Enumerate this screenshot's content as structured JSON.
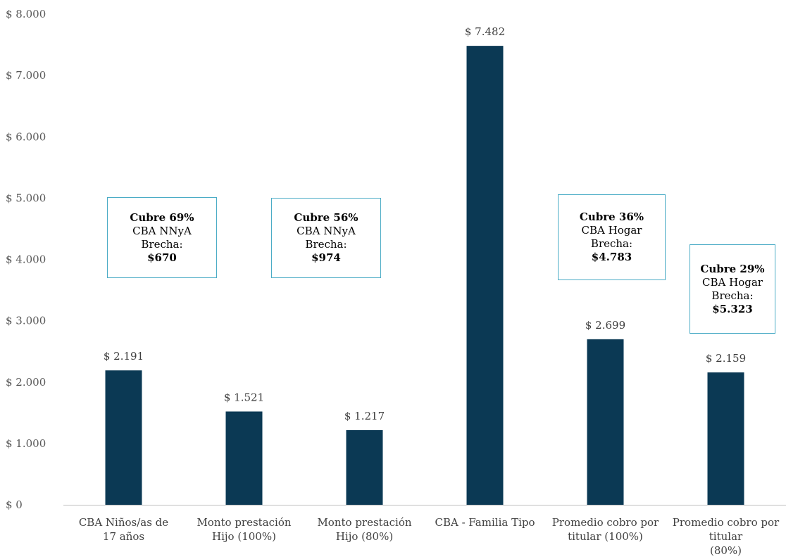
{
  "chart_data": {
    "type": "bar",
    "categories": [
      [
        "CBA Niños/as de",
        "17 años"
      ],
      [
        "Monto prestación",
        "Hijo (100%)"
      ],
      [
        "Monto prestación",
        "Hijo (80%)"
      ],
      [
        "CBA - Familia Tipo"
      ],
      [
        "Promedio cobro por",
        "titular (100%)"
      ],
      [
        "Promedio cobro por",
        "titular",
        "(80%)"
      ]
    ],
    "values": [
      2191,
      1521,
      1217,
      7482,
      2699,
      2159
    ],
    "data_labels": [
      "$ 2.191",
      "$ 1.521",
      "$ 1.217",
      "$ 7.482",
      "$ 2.699",
      "$ 2.159"
    ],
    "yticks": [
      0,
      1000,
      2000,
      3000,
      4000,
      5000,
      6000,
      7000,
      8000
    ],
    "ytick_labels": [
      "$ 0",
      "$ 1.000",
      "$ 2.000",
      "$ 3.000",
      "$ 4.000",
      "$ 5.000",
      "$ 6.000",
      "$ 7.000",
      "$ 8.000"
    ],
    "ylim": [
      0,
      8000
    ],
    "bar_color": "#0b3954",
    "grid": false,
    "title": "",
    "xlabel": "",
    "ylabel": ""
  },
  "callouts": [
    {
      "line1": "Cubre 69%",
      "line2": "CBA NNyA",
      "line3": "Brecha:",
      "line4": "$670"
    },
    {
      "line1": "Cubre 56%",
      "line2": "CBA NNyA",
      "line3": "Brecha:",
      "line4": "$974"
    },
    {
      "line1": "Cubre 36%",
      "line2": "CBA Hogar",
      "line3": "Brecha:",
      "line4": "$4.783"
    },
    {
      "line1": "Cubre 29%",
      "line2": "CBA Hogar",
      "line3": "Brecha:",
      "line4": "$5.323"
    }
  ],
  "callout_border_color": "#4bacc6"
}
